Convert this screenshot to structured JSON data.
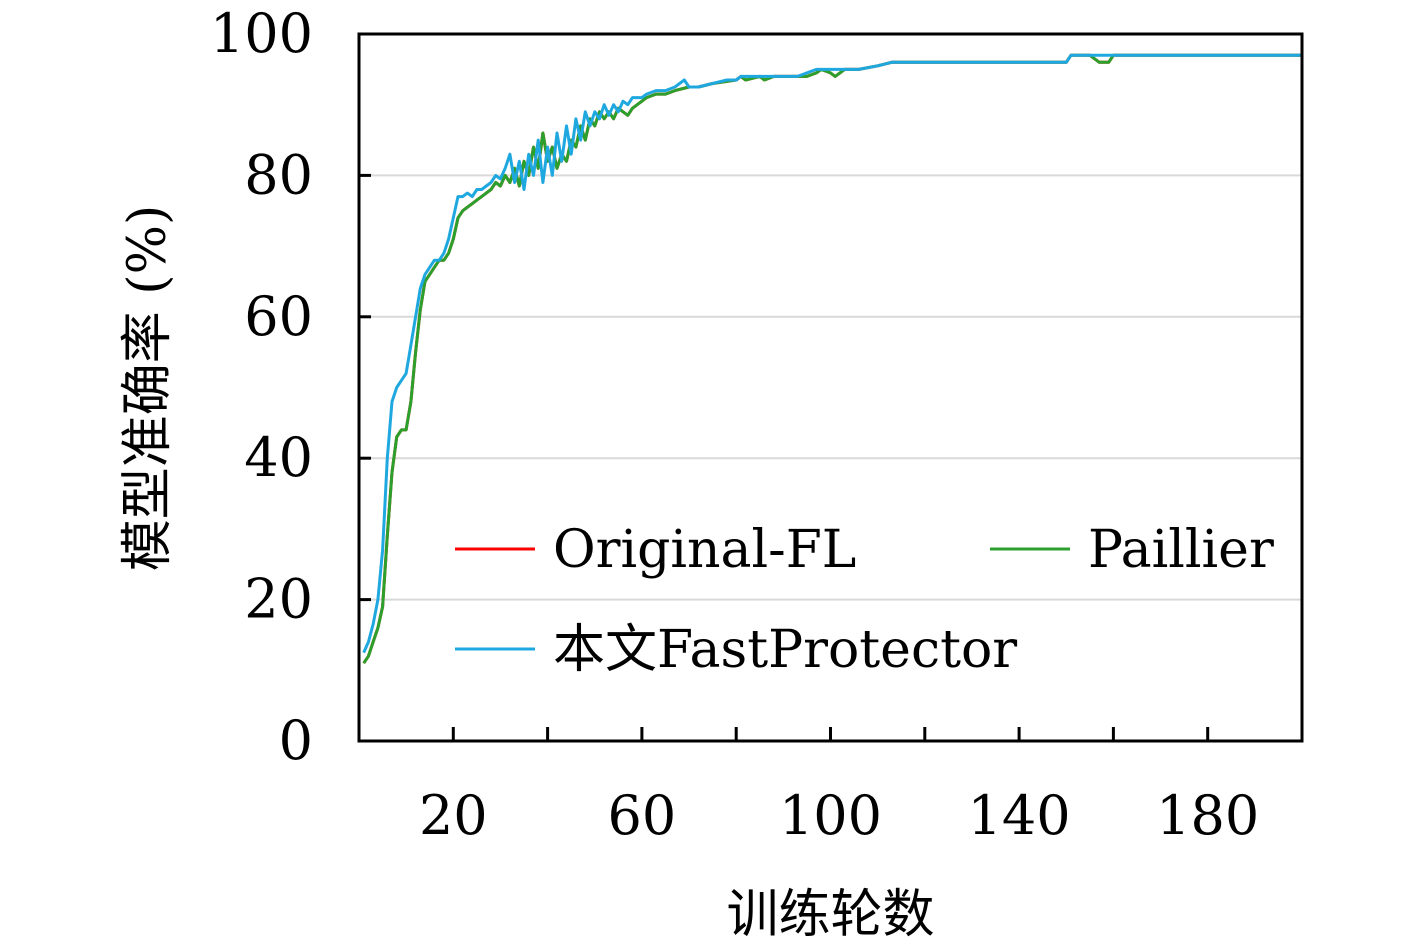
{
  "chart_data": {
    "type": "line",
    "title": "",
    "xlabel": "训练轮数",
    "ylabel": "模型准确率 (%)",
    "xlim": [
      0,
      200
    ],
    "ylim": [
      0,
      100
    ],
    "x_ticks": [
      20,
      60,
      100,
      140,
      180
    ],
    "x_tick_labels": [
      "20",
      "60",
      "100",
      "140",
      "180"
    ],
    "y_ticks": [
      0,
      20,
      40,
      60,
      80,
      100
    ],
    "y_tick_labels": [
      "0",
      "20",
      "40",
      "60",
      "80",
      "100"
    ],
    "grid": "horizontal",
    "legend_position": "lower-right",
    "series": [
      {
        "name": "Original-FL",
        "color": "#ff0000",
        "points": [
          [
            1,
            11
          ],
          [
            2,
            12
          ],
          [
            3,
            14
          ],
          [
            4,
            16
          ],
          [
            5,
            19
          ],
          [
            6,
            29
          ],
          [
            7,
            38
          ],
          [
            8,
            43
          ],
          [
            9,
            44
          ],
          [
            10,
            44
          ],
          [
            11,
            48
          ],
          [
            12,
            55
          ],
          [
            13,
            61
          ],
          [
            14,
            65
          ],
          [
            15,
            66
          ],
          [
            16,
            67
          ],
          [
            17,
            68
          ],
          [
            18,
            68
          ],
          [
            19,
            69
          ],
          [
            20,
            71
          ],
          [
            21,
            74
          ],
          [
            22,
            75
          ],
          [
            23,
            75.5
          ],
          [
            24,
            76
          ],
          [
            25,
            76.5
          ],
          [
            26,
            77
          ],
          [
            27,
            77.5
          ],
          [
            28,
            78
          ],
          [
            29,
            79
          ],
          [
            30,
            78.5
          ],
          [
            31,
            80
          ],
          [
            32,
            79
          ],
          [
            33,
            81
          ],
          [
            34,
            78.5
          ],
          [
            35,
            82
          ],
          [
            36,
            80
          ],
          [
            37,
            84
          ],
          [
            38,
            81
          ],
          [
            39,
            86
          ],
          [
            40,
            82
          ],
          [
            41,
            84
          ],
          [
            42,
            81
          ],
          [
            43,
            83
          ],
          [
            44,
            82
          ],
          [
            45,
            85
          ],
          [
            46,
            84
          ],
          [
            47,
            87
          ],
          [
            48,
            85
          ],
          [
            49,
            88
          ],
          [
            50,
            87
          ],
          [
            51,
            89
          ],
          [
            52,
            88
          ],
          [
            53,
            89
          ],
          [
            54,
            88
          ],
          [
            55,
            89.5
          ],
          [
            56,
            89
          ],
          [
            57,
            88.5
          ],
          [
            58,
            89.5
          ],
          [
            59,
            90
          ],
          [
            60,
            90.5
          ],
          [
            61,
            91
          ],
          [
            63,
            91.5
          ],
          [
            65,
            91.5
          ],
          [
            67,
            92
          ],
          [
            70,
            92.5
          ],
          [
            72,
            92.5
          ],
          [
            75,
            93
          ],
          [
            78,
            93.3
          ],
          [
            80,
            93.5
          ],
          [
            81,
            94
          ],
          [
            82,
            93.5
          ],
          [
            85,
            94
          ],
          [
            86,
            93.5
          ],
          [
            88,
            94
          ],
          [
            90,
            94
          ],
          [
            93,
            94
          ],
          [
            95,
            94
          ],
          [
            97,
            94.5
          ],
          [
            98,
            95
          ],
          [
            100,
            94.5
          ],
          [
            101,
            94
          ],
          [
            103,
            95
          ],
          [
            106,
            95
          ],
          [
            110,
            95.5
          ],
          [
            113,
            96
          ],
          [
            118,
            96
          ],
          [
            125,
            96
          ],
          [
            130,
            96
          ],
          [
            140,
            96
          ],
          [
            145,
            96
          ],
          [
            150,
            96
          ],
          [
            151,
            97
          ],
          [
            155,
            97
          ],
          [
            157,
            96
          ],
          [
            159,
            96
          ],
          [
            160,
            97
          ],
          [
            165,
            97
          ],
          [
            175,
            97
          ],
          [
            185,
            97
          ],
          [
            195,
            97
          ],
          [
            200,
            97
          ]
        ]
      },
      {
        "name": "Paillier",
        "color": "#2ca02c",
        "points": [
          [
            1,
            11
          ],
          [
            2,
            12
          ],
          [
            3,
            14
          ],
          [
            4,
            16
          ],
          [
            5,
            19
          ],
          [
            6,
            29
          ],
          [
            7,
            38
          ],
          [
            8,
            43
          ],
          [
            9,
            44
          ],
          [
            10,
            44
          ],
          [
            11,
            48
          ],
          [
            12,
            55
          ],
          [
            13,
            61
          ],
          [
            14,
            65
          ],
          [
            15,
            66
          ],
          [
            16,
            67
          ],
          [
            17,
            68
          ],
          [
            18,
            68
          ],
          [
            19,
            69
          ],
          [
            20,
            71
          ],
          [
            21,
            74
          ],
          [
            22,
            75
          ],
          [
            23,
            75.5
          ],
          [
            24,
            76
          ],
          [
            25,
            76.5
          ],
          [
            26,
            77
          ],
          [
            27,
            77.5
          ],
          [
            28,
            78
          ],
          [
            29,
            79
          ],
          [
            30,
            78.5
          ],
          [
            31,
            80
          ],
          [
            32,
            79
          ],
          [
            33,
            81
          ],
          [
            34,
            78.5
          ],
          [
            35,
            82
          ],
          [
            36,
            80
          ],
          [
            37,
            84
          ],
          [
            38,
            81
          ],
          [
            39,
            86
          ],
          [
            40,
            82
          ],
          [
            41,
            84
          ],
          [
            42,
            81
          ],
          [
            43,
            83
          ],
          [
            44,
            82
          ],
          [
            45,
            85
          ],
          [
            46,
            84
          ],
          [
            47,
            87
          ],
          [
            48,
            85
          ],
          [
            49,
            88
          ],
          [
            50,
            87
          ],
          [
            51,
            89
          ],
          [
            52,
            88
          ],
          [
            53,
            89
          ],
          [
            54,
            88
          ],
          [
            55,
            89.5
          ],
          [
            56,
            89
          ],
          [
            57,
            88.5
          ],
          [
            58,
            89.5
          ],
          [
            59,
            90
          ],
          [
            60,
            90.5
          ],
          [
            61,
            91
          ],
          [
            63,
            91.5
          ],
          [
            65,
            91.5
          ],
          [
            67,
            92
          ],
          [
            70,
            92.5
          ],
          [
            72,
            92.5
          ],
          [
            75,
            93
          ],
          [
            78,
            93.3
          ],
          [
            80,
            93.5
          ],
          [
            81,
            94
          ],
          [
            82,
            93.5
          ],
          [
            85,
            94
          ],
          [
            86,
            93.5
          ],
          [
            88,
            94
          ],
          [
            90,
            94
          ],
          [
            93,
            94
          ],
          [
            95,
            94
          ],
          [
            97,
            94.5
          ],
          [
            98,
            95
          ],
          [
            100,
            94.5
          ],
          [
            101,
            94
          ],
          [
            103,
            95
          ],
          [
            106,
            95
          ],
          [
            110,
            95.5
          ],
          [
            113,
            96
          ],
          [
            118,
            96
          ],
          [
            125,
            96
          ],
          [
            130,
            96
          ],
          [
            140,
            96
          ],
          [
            145,
            96
          ],
          [
            150,
            96
          ],
          [
            151,
            97
          ],
          [
            155,
            97
          ],
          [
            157,
            96
          ],
          [
            159,
            96
          ],
          [
            160,
            97
          ],
          [
            165,
            97
          ],
          [
            175,
            97
          ],
          [
            185,
            97
          ],
          [
            195,
            97
          ],
          [
            200,
            97
          ]
        ]
      },
      {
        "name": "本文FastProtector",
        "color": "#1fa8e0",
        "points": [
          [
            1,
            12.5
          ],
          [
            2,
            14
          ],
          [
            3,
            16.5
          ],
          [
            4,
            20
          ],
          [
            5,
            27
          ],
          [
            6,
            40
          ],
          [
            7,
            48
          ],
          [
            8,
            50
          ],
          [
            9,
            51
          ],
          [
            10,
            52
          ],
          [
            11,
            56
          ],
          [
            12,
            60
          ],
          [
            13,
            64
          ],
          [
            14,
            66
          ],
          [
            15,
            67
          ],
          [
            16,
            68
          ],
          [
            17,
            68
          ],
          [
            18,
            69
          ],
          [
            19,
            71
          ],
          [
            20,
            74
          ],
          [
            21,
            77
          ],
          [
            22,
            77
          ],
          [
            23,
            77.5
          ],
          [
            24,
            77
          ],
          [
            25,
            78
          ],
          [
            26,
            78
          ],
          [
            27,
            78.5
          ],
          [
            28,
            79
          ],
          [
            29,
            80
          ],
          [
            30,
            79.5
          ],
          [
            31,
            81
          ],
          [
            32,
            83
          ],
          [
            33,
            79
          ],
          [
            34,
            82
          ],
          [
            35,
            78
          ],
          [
            36,
            83
          ],
          [
            37,
            80
          ],
          [
            38,
            85
          ],
          [
            39,
            79
          ],
          [
            40,
            84
          ],
          [
            41,
            80
          ],
          [
            42,
            86
          ],
          [
            43,
            82
          ],
          [
            44,
            87
          ],
          [
            45,
            83
          ],
          [
            46,
            88
          ],
          [
            47,
            85
          ],
          [
            48,
            89
          ],
          [
            49,
            87
          ],
          [
            50,
            89
          ],
          [
            51,
            88
          ],
          [
            52,
            90
          ],
          [
            53,
            88.5
          ],
          [
            54,
            90
          ],
          [
            55,
            89
          ],
          [
            56,
            90.5
          ],
          [
            57,
            90
          ],
          [
            58,
            91
          ],
          [
            59,
            91
          ],
          [
            60,
            91
          ],
          [
            61,
            91.5
          ],
          [
            63,
            92
          ],
          [
            65,
            92
          ],
          [
            67,
            92.5
          ],
          [
            68,
            93
          ],
          [
            69,
            93.5
          ],
          [
            70,
            92.5
          ],
          [
            72,
            92.5
          ],
          [
            75,
            93
          ],
          [
            78,
            93.5
          ],
          [
            80,
            93.5
          ],
          [
            81,
            94
          ],
          [
            82,
            94
          ],
          [
            85,
            94
          ],
          [
            86,
            94
          ],
          [
            88,
            94
          ],
          [
            90,
            94
          ],
          [
            93,
            94
          ],
          [
            95,
            94.5
          ],
          [
            97,
            95
          ],
          [
            98,
            95
          ],
          [
            100,
            95
          ],
          [
            101,
            95
          ],
          [
            103,
            95
          ],
          [
            106,
            95
          ],
          [
            110,
            95.5
          ],
          [
            113,
            96
          ],
          [
            118,
            96
          ],
          [
            125,
            96
          ],
          [
            130,
            96
          ],
          [
            140,
            96
          ],
          [
            145,
            96
          ],
          [
            150,
            96
          ],
          [
            151,
            97
          ],
          [
            155,
            97
          ],
          [
            157,
            97
          ],
          [
            159,
            97
          ],
          [
            160,
            97
          ],
          [
            165,
            97
          ],
          [
            175,
            97
          ],
          [
            185,
            97
          ],
          [
            195,
            97
          ],
          [
            200,
            97
          ]
        ]
      }
    ]
  }
}
